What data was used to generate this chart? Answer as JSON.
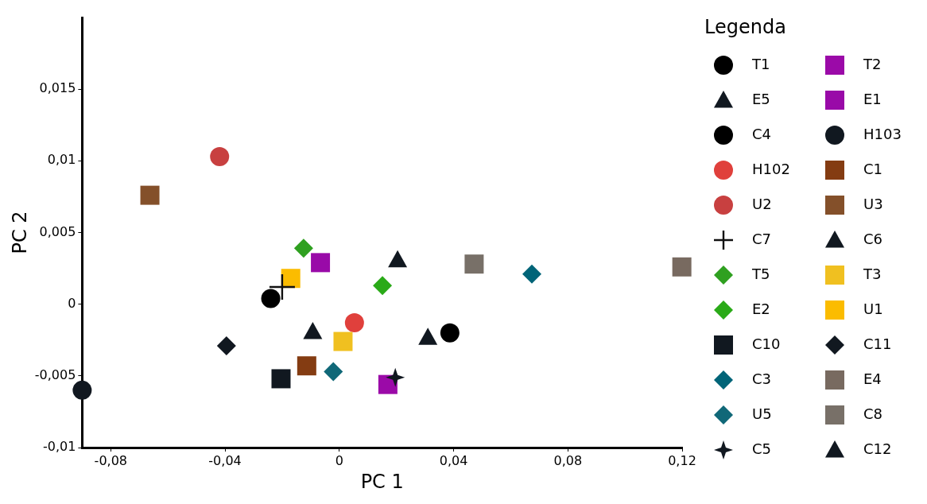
{
  "chart_data": {
    "type": "scatter",
    "xlabel": "PC 1",
    "ylabel": "PC 2",
    "legend_title": "Legenda",
    "legend": "right",
    "grid": false,
    "xlim": [
      -0.09,
      0.12
    ],
    "ylim": [
      -0.01,
      0.02
    ],
    "xticks": [
      {
        "value": -0.08,
        "label": "-0,08"
      },
      {
        "value": -0.04,
        "label": "-0,04"
      },
      0,
      {
        "value": 0.04,
        "label": "0,04"
      },
      {
        "value": 0.08,
        "label": "0,08"
      },
      {
        "value": 0.12,
        "label": "0,12"
      }
    ],
    "yticks": [
      {
        "value": -0.01,
        "label": "-0,01"
      },
      {
        "value": -0.005,
        "label": "-0,005"
      },
      0,
      {
        "value": 0.005,
        "label": "0,005"
      },
      {
        "value": 0.01,
        "label": "0,01"
      },
      {
        "value": 0.015,
        "label": "0,015"
      }
    ],
    "series": [
      {
        "name": "T1",
        "color": "#000000",
        "marker": "circle",
        "x": [
          -0.024
        ],
        "values": [
          0.0004
        ]
      },
      {
        "name": "T2",
        "color": "#9b0aa8",
        "marker": "square",
        "x": [
          0.017
        ],
        "values": [
          -0.0056
        ]
      },
      {
        "name": "E5",
        "color": "#111820",
        "marker": "triangle",
        "x": [
          0.031
        ],
        "values": [
          -0.0023
        ]
      },
      {
        "name": "E1",
        "color": "#990aa8",
        "marker": "square",
        "x": [
          -0.0066
        ],
        "values": [
          0.0029
        ]
      },
      {
        "name": "C4",
        "color": "#000000",
        "marker": "circle",
        "x": [
          0.0387
        ],
        "values": [
          -0.002
        ]
      },
      {
        "name": "H103",
        "color": "#111820",
        "marker": "circle",
        "x": [
          -0.09
        ],
        "values": [
          -0.006
        ]
      },
      {
        "name": "H102",
        "color": "#e0403c",
        "marker": "circle",
        "x": [
          0.0053
        ],
        "values": [
          -0.0013
        ]
      },
      {
        "name": "C1",
        "color": "#843c12",
        "marker": "square",
        "x": [
          -0.0114
        ],
        "values": [
          -0.0043
        ]
      },
      {
        "name": "U2",
        "color": "#c84040",
        "marker": "circle",
        "x": [
          -0.0419
        ],
        "values": [
          0.0103
        ]
      },
      {
        "name": "U3",
        "color": "#84502a",
        "marker": "square",
        "x": [
          -0.0663
        ],
        "values": [
          0.0076
        ]
      },
      {
        "name": "C7",
        "color": "#111111",
        "marker": "cross",
        "x": [
          -0.02
        ],
        "values": [
          0.0012
        ]
      },
      {
        "name": "C6",
        "color": "#111820",
        "marker": "triangle",
        "x": [
          0.0204
        ],
        "values": [
          0.0031
        ]
      },
      {
        "name": "T5",
        "color": "#2fa020",
        "marker": "diamond",
        "x": [
          -0.0125
        ],
        "values": [
          0.0039
        ]
      },
      {
        "name": "T3",
        "color": "#f0c020",
        "marker": "square",
        "x": [
          0.0013
        ],
        "values": [
          -0.0026
        ]
      },
      {
        "name": "E2",
        "color": "#2aaa18",
        "marker": "diamond",
        "x": [
          0.0151
        ],
        "values": [
          0.0013
        ]
      },
      {
        "name": "U1",
        "color": "#fbbc00",
        "marker": "square",
        "x": [
          -0.017
        ],
        "values": [
          0.0018
        ]
      },
      {
        "name": "C10",
        "color": "#111820",
        "marker": "square",
        "x": [
          -0.0204
        ],
        "values": [
          -0.0052
        ]
      },
      {
        "name": "C11",
        "color": "#111820",
        "marker": "diamond",
        "x": [
          -0.0395
        ],
        "values": [
          -0.0029
        ]
      },
      {
        "name": "C3",
        "color": "#006478",
        "marker": "diamond",
        "x": [
          0.0674
        ],
        "values": [
          0.0021
        ]
      },
      {
        "name": "E4",
        "color": "#786a60",
        "marker": "square",
        "x": [
          0.1199
        ],
        "values": [
          0.0026
        ]
      },
      {
        "name": "U5",
        "color": "#106878",
        "marker": "diamond",
        "x": [
          -0.0021
        ],
        "values": [
          -0.0047
        ]
      },
      {
        "name": "C8",
        "color": "#787068",
        "marker": "square",
        "x": [
          0.0472
        ],
        "values": [
          0.0028
        ]
      },
      {
        "name": "C5",
        "color": "#111820",
        "marker": "star",
        "x": [
          0.0196
        ],
        "values": [
          -0.0051
        ]
      },
      {
        "name": "C12",
        "color": "#111820",
        "marker": "triangle",
        "x": [
          -0.0093
        ],
        "values": [
          -0.0019
        ]
      }
    ]
  }
}
